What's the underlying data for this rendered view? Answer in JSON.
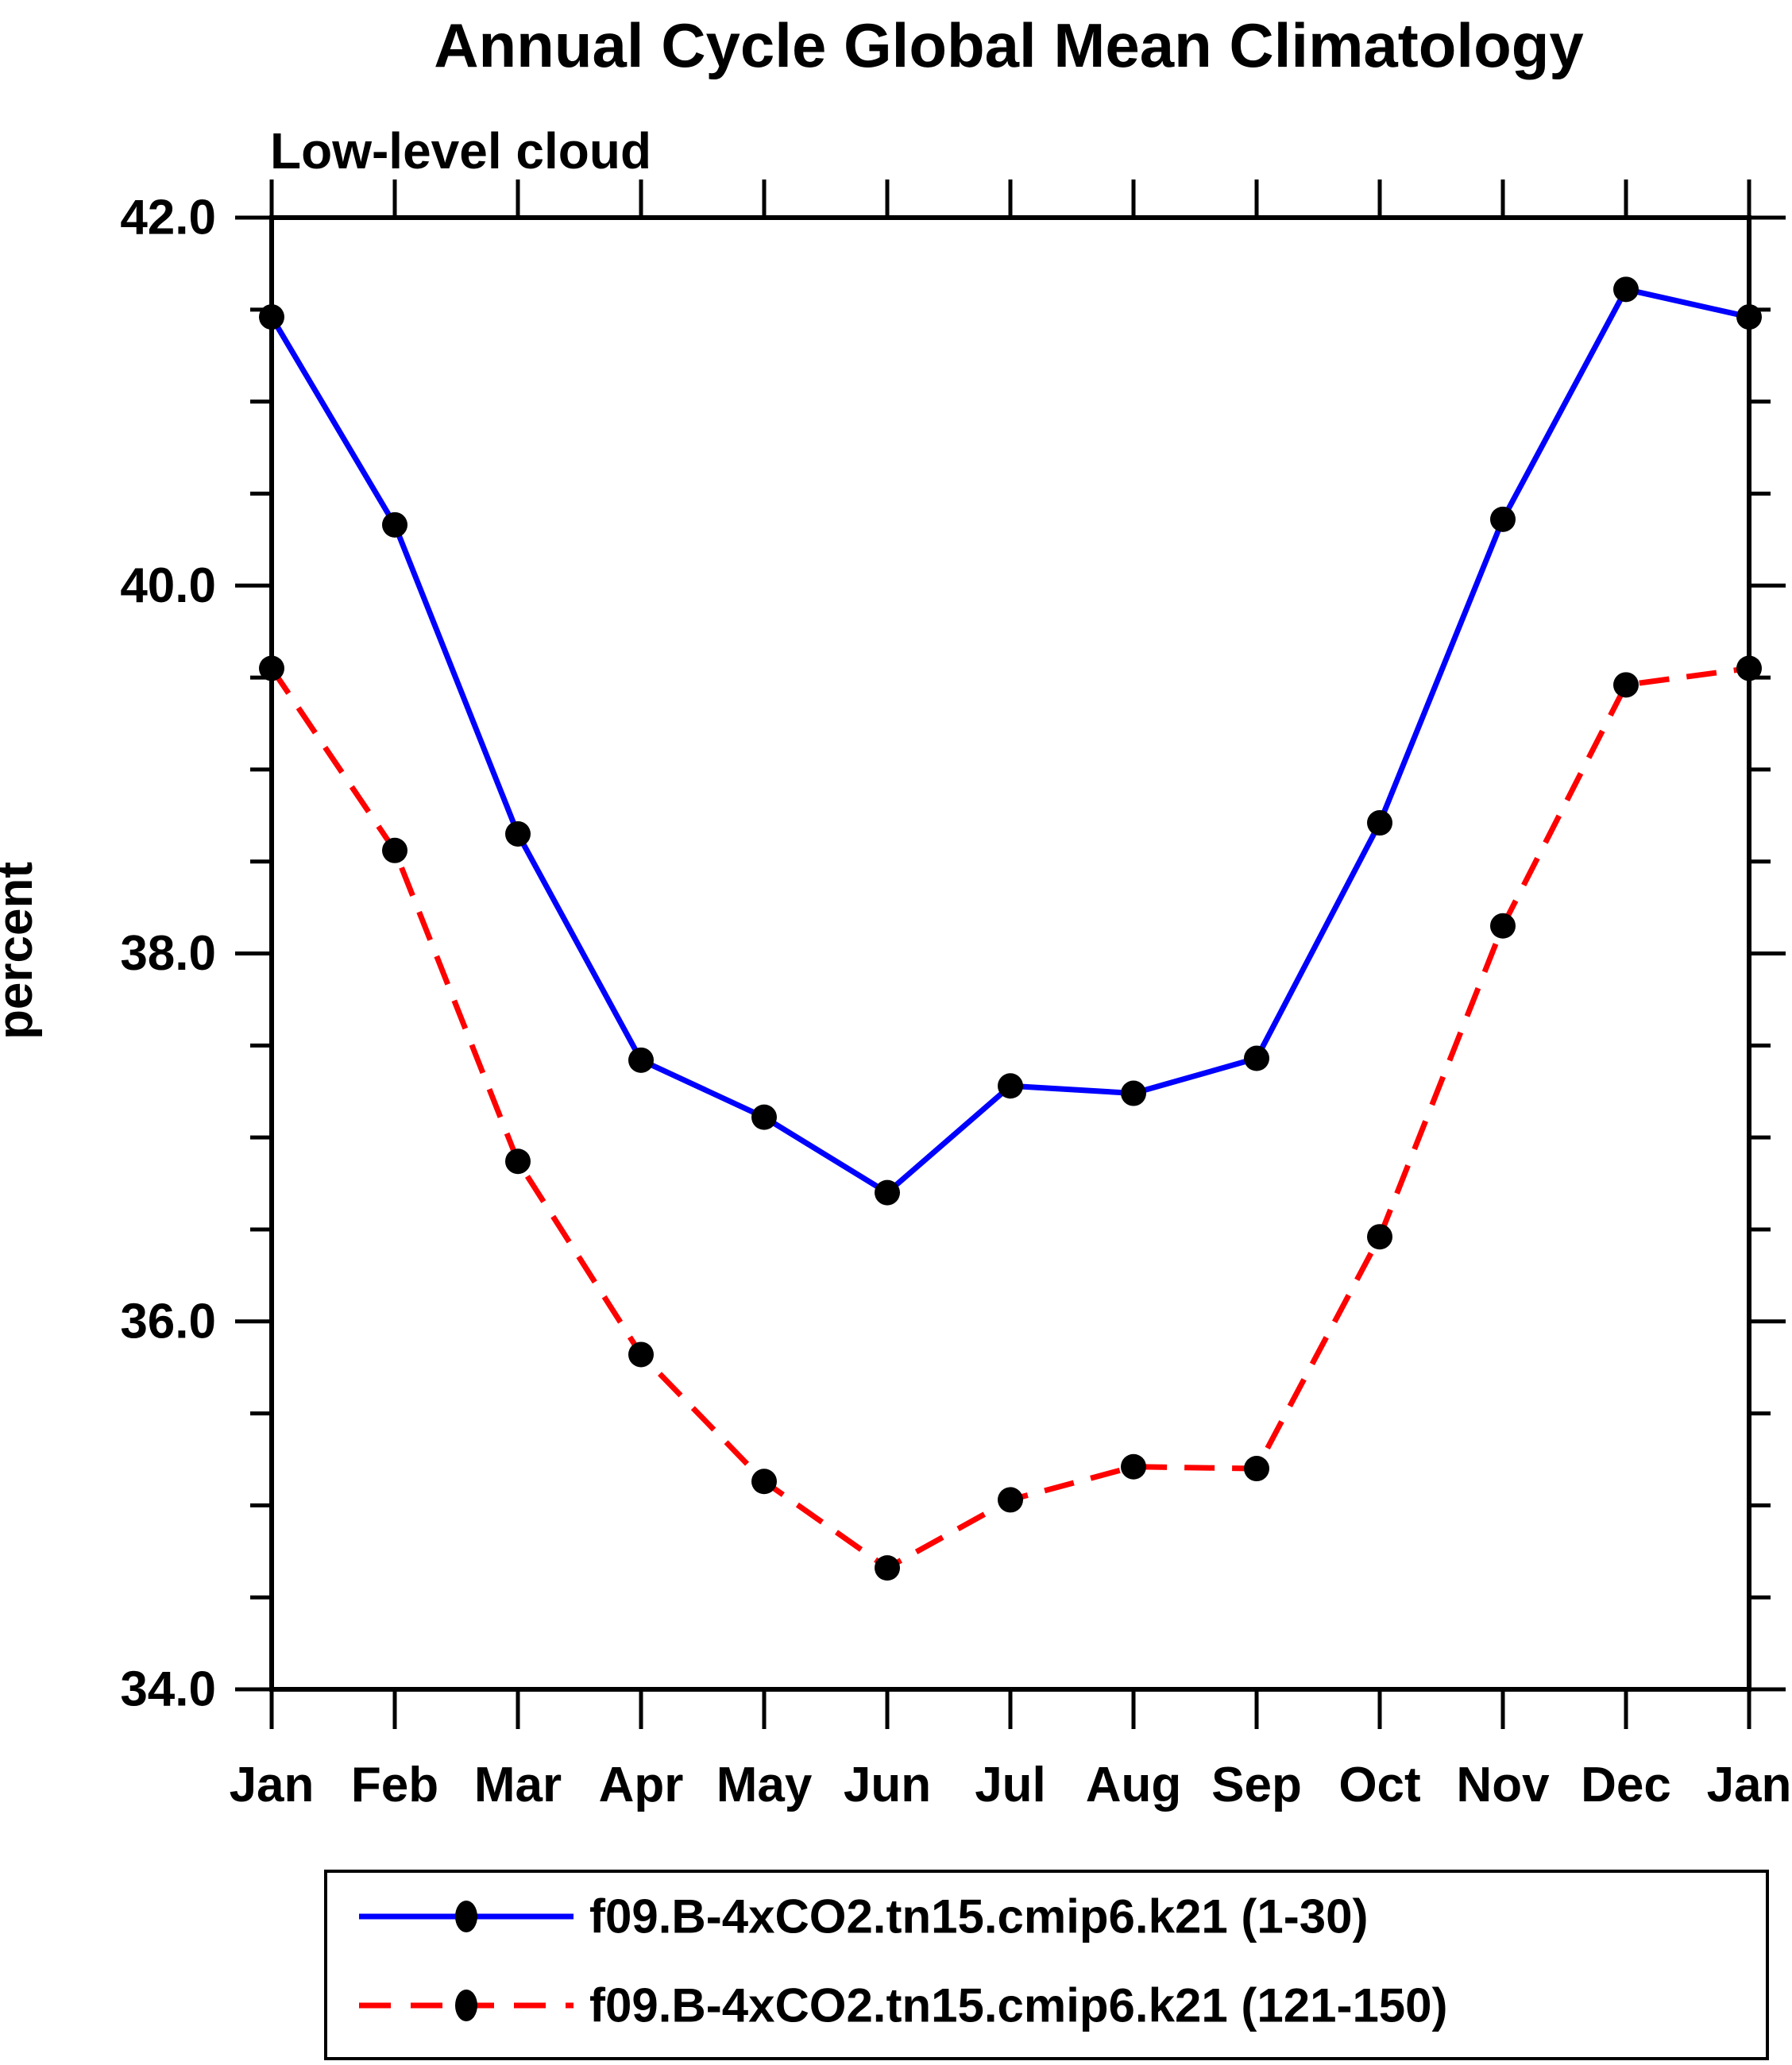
{
  "title": "Annual Cycle Global Mean Climatology",
  "subtitle": "Low-level cloud",
  "colors": {
    "series1": "#0000ff",
    "series2": "#ff0000",
    "marker": "#000000",
    "axis": "#000000",
    "background": "#ffffff"
  },
  "chart_data": {
    "type": "line",
    "title": "Annual Cycle Global Mean Climatology",
    "subtitle": "Low-level cloud",
    "ylabel": "percent",
    "xlabel": "",
    "categories": [
      "Jan",
      "Feb",
      "Mar",
      "Apr",
      "May",
      "Jun",
      "Jul",
      "Aug",
      "Sep",
      "Oct",
      "Nov",
      "Dec",
      "Jan"
    ],
    "series": [
      {
        "name": "f09.B-4xCO2.tn15.cmip6.k21 (1-30)",
        "color": "#0000ff",
        "line_style": "solid",
        "marker": "black-dot",
        "values": [
          41.46,
          40.33,
          38.65,
          37.42,
          37.11,
          36.7,
          37.28,
          37.24,
          37.43,
          38.71,
          40.36,
          41.61,
          41.46
        ]
      },
      {
        "name": "f09.B-4xCO2.tn15.cmip6.k21 (121-150)",
        "color": "#ff0000",
        "line_style": "dashed",
        "marker": "black-dot",
        "values": [
          39.55,
          38.56,
          36.87,
          35.82,
          35.13,
          34.66,
          35.03,
          35.21,
          35.2,
          36.46,
          38.15,
          39.46,
          39.55
        ]
      }
    ],
    "ylim": [
      34.0,
      42.0
    ],
    "ytick_values": [
      42,
      40,
      38,
      36,
      34
    ],
    "ytick_labels": [
      "42.0",
      "40.0",
      "38.0",
      "36.0",
      "34.0"
    ],
    "y_minor_step": 0.5,
    "grid": false,
    "legend_position": "bottom"
  }
}
